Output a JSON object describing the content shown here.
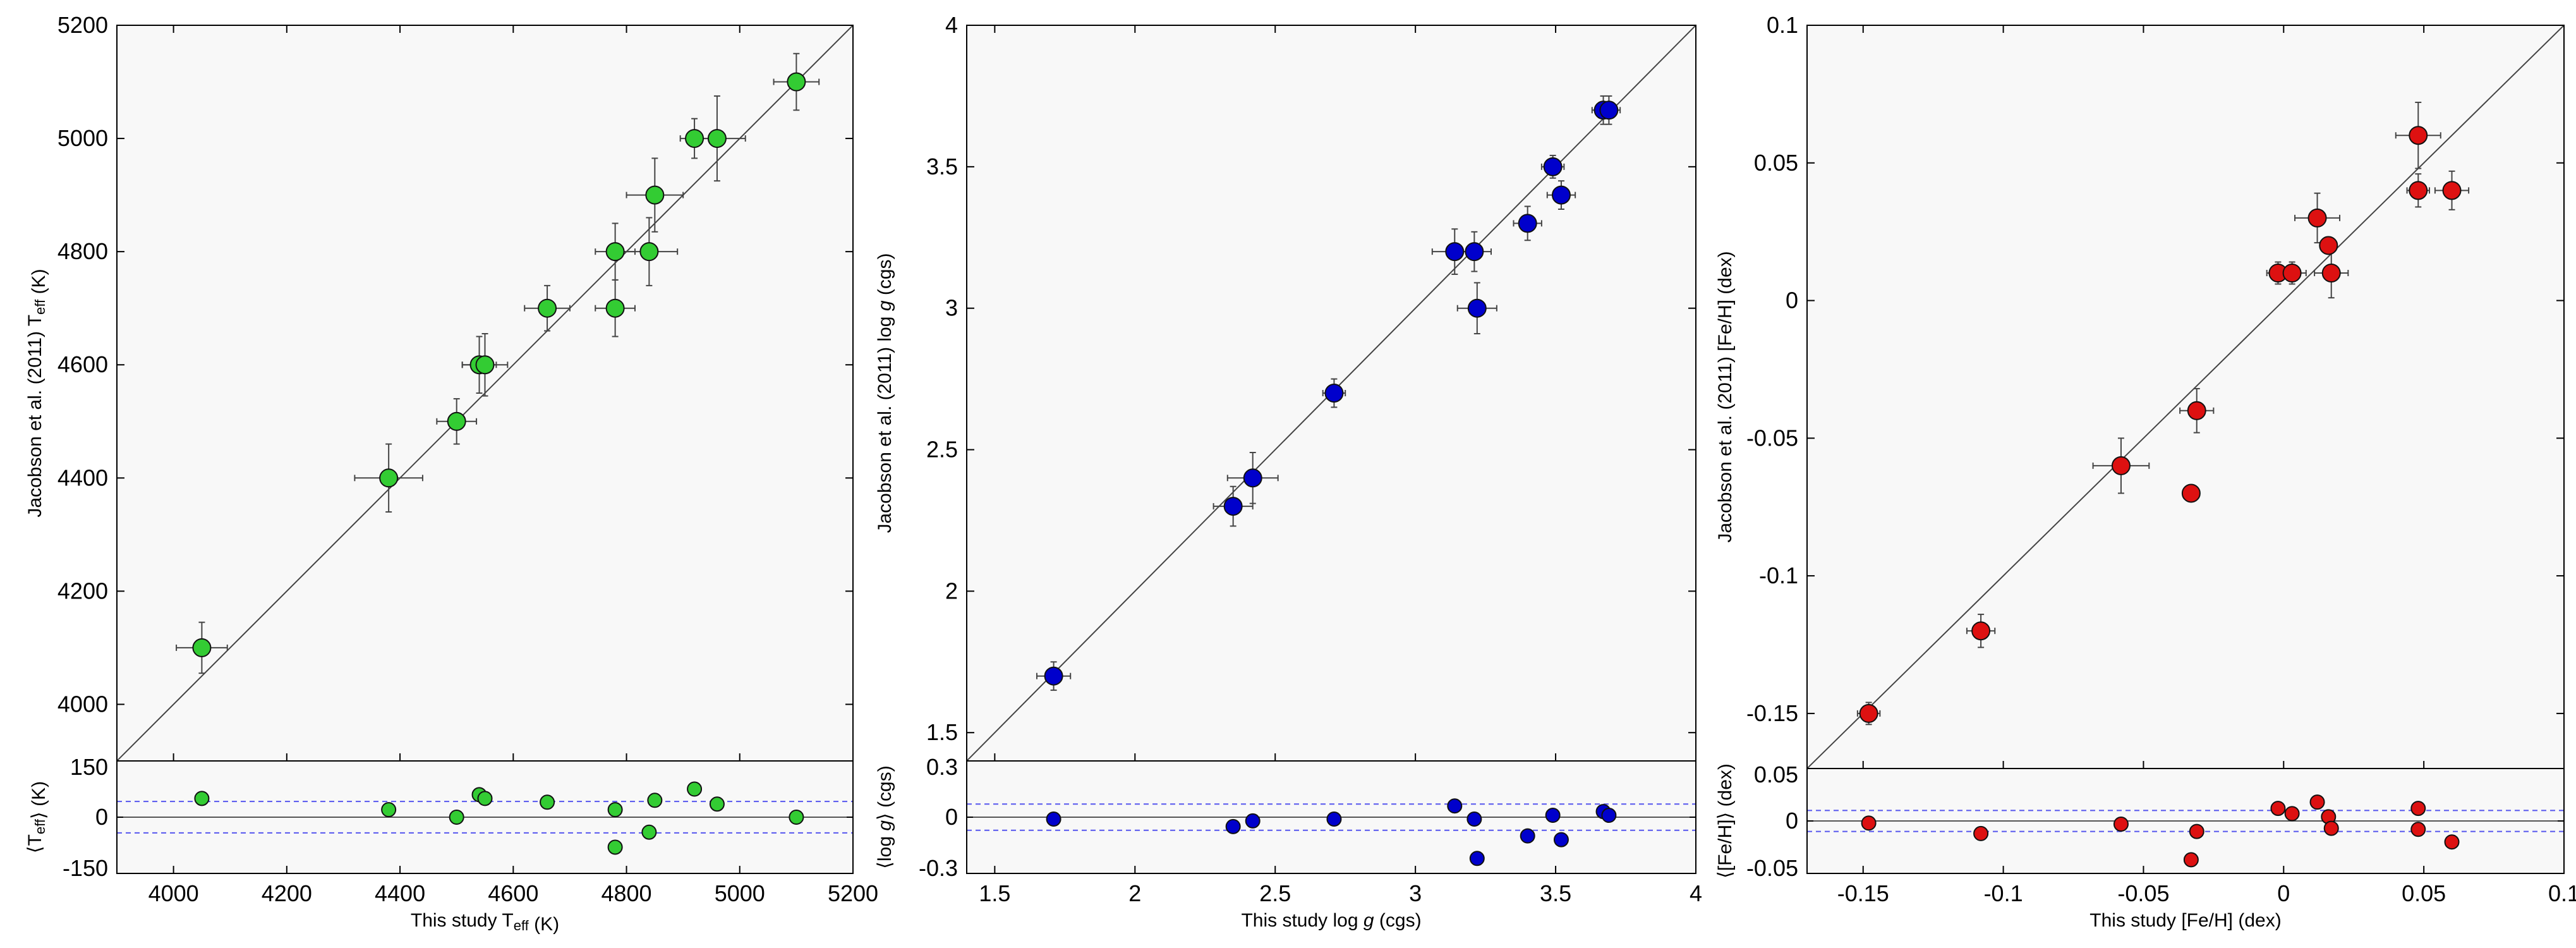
{
  "chart_data": [
    {
      "type": "scatter",
      "id": "teff",
      "point_color": "#33cc33",
      "xlabel": "This study T_eff (K)",
      "ylabel": "Jacobson et al. (2011) T_eff (K)",
      "resid_ylabel": "⟨T_eff⟩ (K)",
      "xlim": [
        3900,
        5200
      ],
      "ylim": [
        3900,
        5200
      ],
      "resid_ylim": [
        -150,
        150
      ],
      "x_ticks": [
        "4000",
        "4200",
        "4400",
        "4600",
        "4800",
        "5000",
        "5200"
      ],
      "y_ticks": [
        "4000",
        "4200",
        "4400",
        "4600",
        "4800",
        "5000",
        "5200"
      ],
      "resid_ticks": [
        "-150",
        "0",
        "150"
      ],
      "resid_band": 42,
      "points": [
        {
          "x": 4050,
          "y": 4100,
          "xerr": 45,
          "yerr": 45
        },
        {
          "x": 4380,
          "y": 4400,
          "xerr": 60,
          "yerr": 60
        },
        {
          "x": 4500,
          "y": 4500,
          "xerr": 35,
          "yerr": 40
        },
        {
          "x": 4540,
          "y": 4600,
          "xerr": 30,
          "yerr": 50
        },
        {
          "x": 4550,
          "y": 4600,
          "xerr": 40,
          "yerr": 55
        },
        {
          "x": 4660,
          "y": 4700,
          "xerr": 40,
          "yerr": 40
        },
        {
          "x": 4780,
          "y": 4700,
          "xerr": 35,
          "yerr": 50
        },
        {
          "x": 4780,
          "y": 4800,
          "xerr": 35,
          "yerr": 50
        },
        {
          "x": 4840,
          "y": 4800,
          "xerr": 50,
          "yerr": 60
        },
        {
          "x": 4850,
          "y": 4900,
          "xerr": 50,
          "yerr": 65
        },
        {
          "x": 4920,
          "y": 5000,
          "xerr": 25,
          "yerr": 35
        },
        {
          "x": 4960,
          "y": 5000,
          "xerr": 50,
          "yerr": 75
        },
        {
          "x": 5100,
          "y": 5100,
          "xerr": 40,
          "yerr": 50
        }
      ],
      "residuals": [
        {
          "x": 4050,
          "y": 50
        },
        {
          "x": 4380,
          "y": 20
        },
        {
          "x": 4500,
          "y": 0
        },
        {
          "x": 4540,
          "y": 60
        },
        {
          "x": 4550,
          "y": 50
        },
        {
          "x": 4660,
          "y": 40
        },
        {
          "x": 4780,
          "y": 20
        },
        {
          "x": 4780,
          "y": -80
        },
        {
          "x": 4840,
          "y": -40
        },
        {
          "x": 4850,
          "y": 45
        },
        {
          "x": 4920,
          "y": 75
        },
        {
          "x": 4960,
          "y": 35
        },
        {
          "x": 5100,
          "y": 0
        }
      ]
    },
    {
      "type": "scatter",
      "id": "logg",
      "point_color": "#0000cc",
      "xlabel": "This study log g (cgs)",
      "ylabel": "Jacobson et al. (2011) log g (cgs)",
      "resid_ylabel": "⟨log g⟩ (cgs)",
      "xlim": [
        1.4,
        4.0
      ],
      "ylim": [
        1.4,
        4.0
      ],
      "resid_ylim": [
        -0.3,
        0.3
      ],
      "x_ticks": [
        "1.5",
        "2",
        "2.5",
        "3",
        "3.5",
        "4"
      ],
      "y_ticks": [
        "1.5",
        "2",
        "2.5",
        "3",
        "3.5",
        "4"
      ],
      "resid_ticks": [
        "-0.3",
        "0",
        "0.3"
      ],
      "resid_band": 0.07,
      "points": [
        {
          "x": 1.71,
          "y": 1.7,
          "xerr": 0.06,
          "yerr": 0.05
        },
        {
          "x": 2.35,
          "y": 2.3,
          "xerr": 0.07,
          "yerr": 0.07
        },
        {
          "x": 2.42,
          "y": 2.4,
          "xerr": 0.09,
          "yerr": 0.09
        },
        {
          "x": 2.71,
          "y": 2.7,
          "xerr": 0.04,
          "yerr": 0.05
        },
        {
          "x": 3.14,
          "y": 3.2,
          "xerr": 0.08,
          "yerr": 0.08
        },
        {
          "x": 3.21,
          "y": 3.2,
          "xerr": 0.06,
          "yerr": 0.07
        },
        {
          "x": 3.22,
          "y": 3.0,
          "xerr": 0.07,
          "yerr": 0.09
        },
        {
          "x": 3.4,
          "y": 3.3,
          "xerr": 0.05,
          "yerr": 0.06
        },
        {
          "x": 3.49,
          "y": 3.5,
          "xerr": 0.04,
          "yerr": 0.04
        },
        {
          "x": 3.52,
          "y": 3.4,
          "xerr": 0.05,
          "yerr": 0.05
        },
        {
          "x": 3.67,
          "y": 3.7,
          "xerr": 0.04,
          "yerr": 0.05
        },
        {
          "x": 3.69,
          "y": 3.7,
          "xerr": 0.04,
          "yerr": 0.05
        }
      ],
      "residuals": [
        {
          "x": 1.71,
          "y": -0.01
        },
        {
          "x": 2.35,
          "y": -0.05
        },
        {
          "x": 2.42,
          "y": -0.02
        },
        {
          "x": 2.71,
          "y": -0.01
        },
        {
          "x": 3.14,
          "y": 0.06
        },
        {
          "x": 3.21,
          "y": -0.01
        },
        {
          "x": 3.22,
          "y": -0.22
        },
        {
          "x": 3.4,
          "y": -0.1
        },
        {
          "x": 3.49,
          "y": 0.01
        },
        {
          "x": 3.52,
          "y": -0.12
        },
        {
          "x": 3.67,
          "y": 0.03
        },
        {
          "x": 3.69,
          "y": 0.01
        }
      ]
    },
    {
      "type": "scatter",
      "id": "feh",
      "point_color": "#dd1111",
      "xlabel": "This study [Fe/H] (dex)",
      "ylabel": "Jacobson et al. (2011) [Fe/H] (dex)",
      "resid_ylabel": "⟨[Fe/H]⟩ (dex)",
      "xlim": [
        -0.17,
        0.1
      ],
      "ylim": [
        -0.17,
        0.1
      ],
      "resid_ylim": [
        -0.05,
        0.05
      ],
      "x_ticks": [
        "-0.15",
        "-0.1",
        "-0.05",
        "0",
        "0.05",
        "0.1"
      ],
      "y_ticks": [
        "-0.15",
        "-0.1",
        "-0.05",
        "0",
        "0.05",
        "0.1"
      ],
      "resid_ticks": [
        "-0.05",
        "0",
        "0.05"
      ],
      "resid_band": 0.01,
      "points": [
        {
          "x": -0.148,
          "y": -0.15,
          "xerr": 0.004,
          "yerr": 0.004
        },
        {
          "x": -0.108,
          "y": -0.12,
          "xerr": 0.005,
          "yerr": 0.006
        },
        {
          "x": -0.058,
          "y": -0.06,
          "xerr": 0.01,
          "yerr": 0.01
        },
        {
          "x": -0.033,
          "y": -0.07,
          "xerr": 0.003,
          "yerr": 0.003
        },
        {
          "x": -0.031,
          "y": -0.04,
          "xerr": 0.006,
          "yerr": 0.008
        },
        {
          "x": -0.002,
          "y": 0.01,
          "xerr": 0.004,
          "yerr": 0.004
        },
        {
          "x": 0.003,
          "y": 0.01,
          "xerr": 0.005,
          "yerr": 0.004
        },
        {
          "x": 0.012,
          "y": 0.03,
          "xerr": 0.008,
          "yerr": 0.009
        },
        {
          "x": 0.016,
          "y": 0.02,
          "xerr": 0.003,
          "yerr": 0.003
        },
        {
          "x": 0.017,
          "y": 0.01,
          "xerr": 0.006,
          "yerr": 0.009
        },
        {
          "x": 0.048,
          "y": 0.06,
          "xerr": 0.008,
          "yerr": 0.012
        },
        {
          "x": 0.048,
          "y": 0.04,
          "xerr": 0.004,
          "yerr": 0.006
        },
        {
          "x": 0.06,
          "y": 0.04,
          "xerr": 0.006,
          "yerr": 0.007
        }
      ],
      "residuals": [
        {
          "x": -0.148,
          "y": -0.002
        },
        {
          "x": -0.108,
          "y": -0.012
        },
        {
          "x": -0.058,
          "y": -0.003
        },
        {
          "x": -0.033,
          "y": -0.037
        },
        {
          "x": -0.031,
          "y": -0.01
        },
        {
          "x": -0.002,
          "y": 0.012
        },
        {
          "x": 0.003,
          "y": 0.007
        },
        {
          "x": 0.012,
          "y": 0.018
        },
        {
          "x": 0.016,
          "y": 0.004
        },
        {
          "x": 0.017,
          "y": -0.007
        },
        {
          "x": 0.048,
          "y": 0.012
        },
        {
          "x": 0.048,
          "y": -0.008
        },
        {
          "x": 0.06,
          "y": -0.02
        }
      ]
    }
  ]
}
